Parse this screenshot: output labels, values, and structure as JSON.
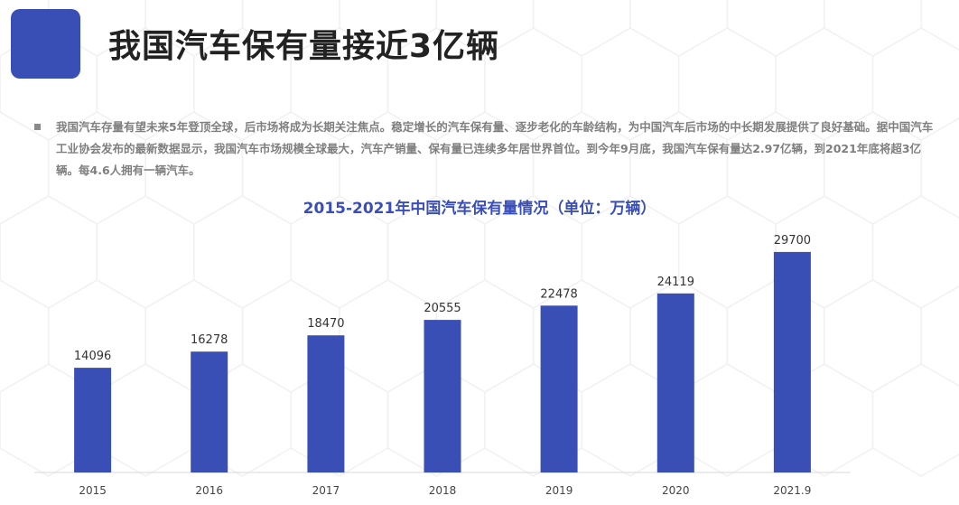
{
  "header": {
    "title": "我国汽车保有量接近3亿辆"
  },
  "intro": {
    "text": "我国汽车存量有望未来5年登顶全球，后市场将成为长期关注焦点。稳定增长的汽车保有量、逐步老化的车龄结构，为中国汽车后市场的中长期发展提供了良好基础。据中国汽车工业协会发布的最新数据显示，我国汽车市场规模全球最大，汽车产销量、保有量已连续多年居世界首位。到今年9月底，我国汽车保有量达2.97亿辆，到2021年底将超3亿辆。每4.6人拥有一辆汽车。"
  },
  "colors": {
    "accent": "#3a4fb6",
    "bar": "#3a4fb6",
    "text": "#222222"
  },
  "chart_data": {
    "type": "bar",
    "title": "2015-2021年中国汽车保有量情况（单位：万辆）",
    "categories": [
      "2015",
      "2016",
      "2017",
      "2018",
      "2019",
      "2020",
      "2021.9"
    ],
    "values": [
      14096,
      16278,
      18470,
      20555,
      22478,
      24119,
      29700
    ],
    "ylim": [
      0,
      32000
    ],
    "grid": false,
    "data_labels": true
  }
}
